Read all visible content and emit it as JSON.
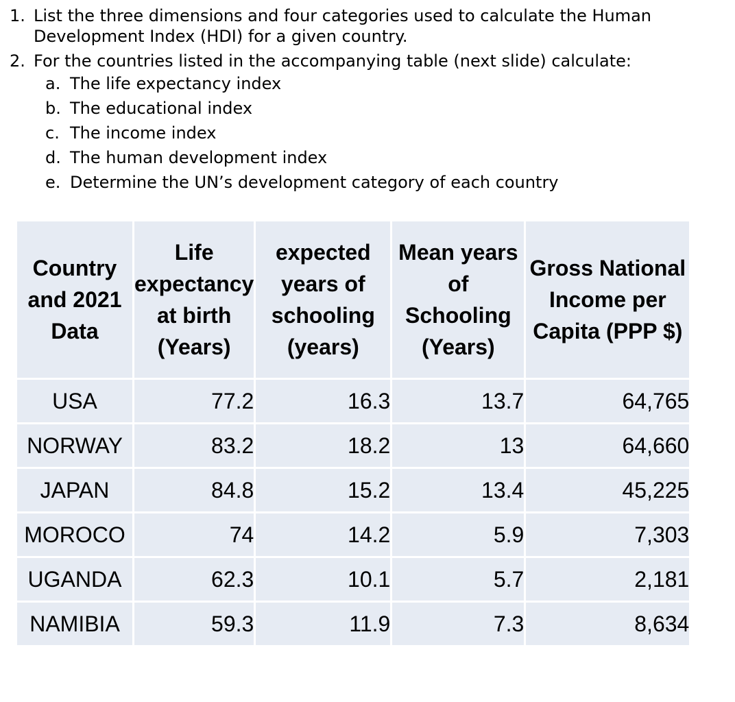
{
  "questions": [
    {
      "number": "1.",
      "text": "List the three dimensions and four categories used to calculate the Human Development Index (HDI) for a given country."
    },
    {
      "number": "2.",
      "text": "For the countries listed in the accompanying table (next slide) calculate:",
      "subitems": [
        {
          "letter": "a.",
          "text": "The life expectancy index"
        },
        {
          "letter": "b.",
          "text": "The educational index"
        },
        {
          "letter": "c.",
          "text": "The income index"
        },
        {
          "letter": "d.",
          "text": "The human development index"
        },
        {
          "letter": "e.",
          "text": "Determine the UN’s development category of each country"
        }
      ]
    }
  ],
  "table": {
    "headers": [
      "Country and 2021 Data",
      "Life expectancy at birth (Years)",
      "expected years of schooling (years)",
      "Mean years of Schooling (Years)",
      "Gross National Income per Capita (PPP $)"
    ],
    "rows": [
      {
        "country": "USA",
        "life_expectancy": "77.2",
        "expected_schooling": "16.3",
        "mean_schooling": "13.7",
        "gni": "64,765"
      },
      {
        "country": "NORWAY",
        "life_expectancy": "83.2",
        "expected_schooling": "18.2",
        "mean_schooling": "13",
        "gni": "64,660"
      },
      {
        "country": "JAPAN",
        "life_expectancy": "84.8",
        "expected_schooling": "15.2",
        "mean_schooling": "13.4",
        "gni": "45,225"
      },
      {
        "country": "MOROCO",
        "life_expectancy": "74",
        "expected_schooling": "14.2",
        "mean_schooling": "5.9",
        "gni": "7,303"
      },
      {
        "country": "UGANDA",
        "life_expectancy": "62.3",
        "expected_schooling": "10.1",
        "mean_schooling": "5.7",
        "gni": "2,181"
      },
      {
        "country": "NAMIBIA",
        "life_expectancy": "59.3",
        "expected_schooling": "11.9",
        "mean_schooling": "7.3",
        "gni": "8,634"
      }
    ]
  }
}
